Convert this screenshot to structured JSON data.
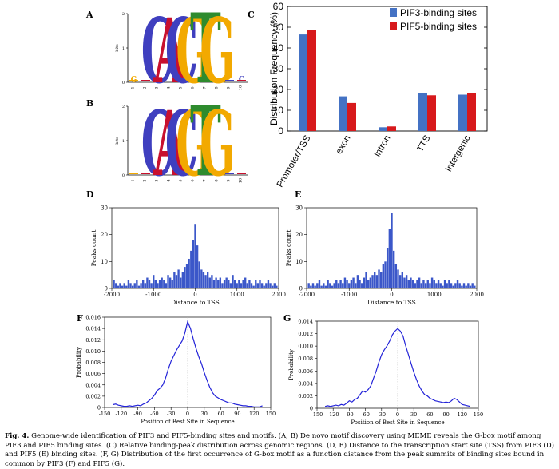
{
  "panel_labels": {
    "a": "A",
    "b": "B",
    "c": "C",
    "d": "D",
    "e": "E",
    "f": "F",
    "g": "G"
  },
  "logo_axis": {
    "ylabel": "bits",
    "yticks": [
      "0",
      "1",
      "2"
    ],
    "positions": [
      "1",
      "2",
      "3",
      "4",
      "5",
      "6",
      "7",
      "8",
      "9",
      "10"
    ]
  },
  "colors": {
    "series1": "#4472c4",
    "series2": "#d7191c",
    "hist": "#3b57c9",
    "curve": "#2323d8",
    "logo_c": "#3f3fbf",
    "logo_a": "#c8102e",
    "logo_g": "#f2a900",
    "logo_t": "#2e8b2e"
  },
  "motif_a": {
    "letters": [
      "G",
      "",
      "C",
      "A",
      "C",
      "G",
      "T",
      "G",
      "",
      ""
    ],
    "small_tail": "C"
  },
  "motif_b": {
    "letters": [
      "",
      "",
      "C",
      "A",
      "C",
      "G",
      "T",
      "G",
      "",
      ""
    ]
  },
  "chart_data": [
    {
      "id": "C",
      "type": "bar",
      "categories": [
        "Promoter/TSS",
        "exon",
        "intron",
        "TTS",
        "Intergenic"
      ],
      "series": [
        {
          "name": "PIF3-binding sites",
          "values": [
            46.5,
            16.7,
            1.8,
            18.2,
            17.5
          ]
        },
        {
          "name": "PIF5-binding sites",
          "values": [
            48.8,
            13.5,
            2.2,
            17.2,
            18.3
          ]
        }
      ],
      "ylabel": "Distribution Frequency (%)",
      "xlabel": "",
      "ylim": [
        0,
        60
      ],
      "yticks": [
        "0",
        "10",
        "20",
        "30",
        "40",
        "50",
        "60"
      ],
      "legend": "top-right"
    },
    {
      "id": "D",
      "type": "bar",
      "xlabel": "Distance to TSS",
      "ylabel": "Peaks count",
      "xlim": [
        -2000,
        2000
      ],
      "ylim": [
        0,
        30
      ],
      "xticks": [
        "-2000",
        "-1000",
        "0",
        "1000",
        "2000"
      ],
      "yticks": [
        "0",
        "10",
        "20",
        "30"
      ],
      "x": [
        -1950,
        -1900,
        -1850,
        -1800,
        -1750,
        -1700,
        -1650,
        -1600,
        -1550,
        -1500,
        -1450,
        -1400,
        -1350,
        -1300,
        -1250,
        -1200,
        -1150,
        -1100,
        -1050,
        -1000,
        -950,
        -900,
        -850,
        -800,
        -750,
        -700,
        -650,
        -600,
        -550,
        -500,
        -450,
        -400,
        -350,
        -300,
        -250,
        -200,
        -150,
        -100,
        -50,
        0,
        50,
        100,
        150,
        200,
        250,
        300,
        350,
        400,
        450,
        500,
        550,
        600,
        650,
        700,
        750,
        800,
        850,
        900,
        950,
        1000,
        1050,
        1100,
        1150,
        1200,
        1250,
        1300,
        1350,
        1400,
        1450,
        1500,
        1550,
        1600,
        1650,
        1700,
        1750,
        1800,
        1850,
        1900,
        1950
      ],
      "values": [
        3,
        2,
        1,
        2,
        1,
        2,
        1,
        3,
        2,
        1,
        2,
        3,
        1,
        2,
        3,
        2,
        4,
        3,
        2,
        5,
        3,
        2,
        3,
        4,
        3,
        2,
        5,
        4,
        3,
        6,
        5,
        7,
        4,
        6,
        8,
        9,
        11,
        14,
        18,
        24,
        16,
        10,
        7,
        6,
        5,
        6,
        4,
        5,
        3,
        4,
        3,
        4,
        2,
        3,
        4,
        3,
        2,
        5,
        3,
        2,
        3,
        2,
        3,
        4,
        2,
        3,
        2,
        1,
        3,
        2,
        3,
        2,
        1,
        2,
        3,
        2,
        1,
        2,
        1
      ]
    },
    {
      "id": "E",
      "type": "bar",
      "xlabel": "Distance to TSS",
      "ylabel": "Peaks count",
      "xlim": [
        -2000,
        2000
      ],
      "ylim": [
        0,
        30
      ],
      "xticks": [
        "-2000",
        "-1000",
        "0",
        "1000",
        "2000"
      ],
      "yticks": [
        "0",
        "10",
        "20",
        "30"
      ],
      "x": [
        -1950,
        -1900,
        -1850,
        -1800,
        -1750,
        -1700,
        -1650,
        -1600,
        -1550,
        -1500,
        -1450,
        -1400,
        -1350,
        -1300,
        -1250,
        -1200,
        -1150,
        -1100,
        -1050,
        -1000,
        -950,
        -900,
        -850,
        -800,
        -750,
        -700,
        -650,
        -600,
        -550,
        -500,
        -450,
        -400,
        -350,
        -300,
        -250,
        -200,
        -150,
        -100,
        -50,
        0,
        50,
        100,
        150,
        200,
        250,
        300,
        350,
        400,
        450,
        500,
        550,
        600,
        650,
        700,
        750,
        800,
        850,
        900,
        950,
        1000,
        1050,
        1100,
        1150,
        1200,
        1250,
        1300,
        1350,
        1400,
        1450,
        1500,
        1550,
        1600,
        1650,
        1700,
        1750,
        1800,
        1850,
        1900,
        1950
      ],
      "values": [
        2,
        1,
        2,
        1,
        2,
        3,
        1,
        2,
        1,
        3,
        2,
        1,
        2,
        3,
        2,
        3,
        2,
        4,
        3,
        2,
        3,
        4,
        2,
        5,
        3,
        2,
        4,
        6,
        3,
        4,
        5,
        6,
        5,
        7,
        6,
        9,
        10,
        15,
        22,
        28,
        14,
        9,
        7,
        5,
        6,
        4,
        5,
        3,
        4,
        3,
        2,
        3,
        4,
        2,
        3,
        2,
        3,
        2,
        4,
        3,
        2,
        3,
        2,
        1,
        3,
        2,
        3,
        2,
        1,
        2,
        3,
        2,
        1,
        2,
        1,
        2,
        1,
        2,
        1
      ]
    },
    {
      "id": "F",
      "type": "line",
      "xlabel": "Position of Best Site in Sequence",
      "ylabel": "Probability",
      "xlim": [
        -150,
        150
      ],
      "ylim": [
        0,
        0.016
      ],
      "xticks": [
        "-150",
        "-120",
        "-90",
        "-60",
        "-30",
        "0",
        "30",
        "60",
        "90",
        "120",
        "150"
      ],
      "yticks": [
        "0",
        "0.002",
        "0.004",
        "0.006",
        "0.008",
        "0.010",
        "0.012",
        "0.014",
        "0.016"
      ],
      "x": [
        -135,
        -130,
        -125,
        -120,
        -115,
        -110,
        -105,
        -100,
        -95,
        -90,
        -85,
        -80,
        -75,
        -70,
        -65,
        -60,
        -55,
        -50,
        -45,
        -40,
        -35,
        -30,
        -25,
        -20,
        -15,
        -10,
        -5,
        0,
        5,
        10,
        15,
        20,
        25,
        30,
        35,
        40,
        45,
        50,
        55,
        60,
        65,
        70,
        75,
        80,
        85,
        90,
        95,
        100,
        105,
        110,
        115,
        120,
        125,
        130,
        135
      ],
      "values": [
        0.0005,
        0.0006,
        0.0004,
        0.0003,
        0.0002,
        0.0002,
        0.0003,
        0.0002,
        0.0003,
        0.0004,
        0.0003,
        0.0006,
        0.0008,
        0.0012,
        0.0016,
        0.0022,
        0.003,
        0.0034,
        0.004,
        0.0052,
        0.0068,
        0.0082,
        0.0092,
        0.0102,
        0.011,
        0.0118,
        0.0132,
        0.0152,
        0.014,
        0.0122,
        0.0105,
        0.009,
        0.0078,
        0.0062,
        0.0048,
        0.0036,
        0.0026,
        0.002,
        0.0017,
        0.0014,
        0.0012,
        0.001,
        0.0008,
        0.0008,
        0.0006,
        0.0005,
        0.0004,
        0.0003,
        0.0003,
        0.0002,
        0.0002,
        0.0001,
        0.0001,
        0.0001,
        0.0003
      ]
    },
    {
      "id": "G",
      "type": "line",
      "xlabel": "Position of Best Site in Sequence",
      "ylabel": "Probability",
      "xlim": [
        -150,
        150
      ],
      "ylim": [
        0,
        0.014
      ],
      "xticks": [
        "-150",
        "-120",
        "-90",
        "-60",
        "-30",
        "0",
        "30",
        "60",
        "90",
        "120",
        "150"
      ],
      "yticks": [
        "0",
        "0.002",
        "0.004",
        "0.006",
        "0.008",
        "0.010",
        "0.012",
        "0.014"
      ],
      "x": [
        -135,
        -130,
        -125,
        -120,
        -115,
        -110,
        -105,
        -100,
        -95,
        -90,
        -85,
        -80,
        -75,
        -70,
        -65,
        -60,
        -55,
        -50,
        -45,
        -40,
        -35,
        -30,
        -25,
        -20,
        -15,
        -10,
        -5,
        0,
        5,
        10,
        15,
        20,
        25,
        30,
        35,
        40,
        45,
        50,
        55,
        60,
        65,
        70,
        75,
        80,
        85,
        90,
        95,
        100,
        105,
        110,
        115,
        120,
        125,
        130,
        135
      ],
      "values": [
        0.0003,
        0.0004,
        0.0003,
        0.0004,
        0.0005,
        0.0004,
        0.0006,
        0.0005,
        0.0008,
        0.0012,
        0.001,
        0.0014,
        0.0016,
        0.0022,
        0.0028,
        0.0026,
        0.003,
        0.0036,
        0.0048,
        0.006,
        0.0074,
        0.0086,
        0.0094,
        0.01,
        0.0108,
        0.0118,
        0.0124,
        0.0128,
        0.0124,
        0.0116,
        0.01,
        0.0086,
        0.0072,
        0.0058,
        0.0046,
        0.0036,
        0.0028,
        0.0022,
        0.002,
        0.0016,
        0.0014,
        0.0012,
        0.0011,
        0.001,
        0.0009,
        0.001,
        0.0009,
        0.0012,
        0.0016,
        0.0014,
        0.001,
        0.0006,
        0.0005,
        0.0004,
        0.0003
      ]
    }
  ],
  "caption": {
    "label": "Fig. 4.",
    "text": " Genome-wide identification of PIF3 and PIF5-binding sites and motifs. (A, B) De novo motif discovery using MEME reveals the G-box motif among PIF3 and PIF5 binding sites. (C) Relative binding-peak distribution across genomic regions. (D, E) Distance to the transcription start site (TSS) from PIF3 (D) and PIF5 (E) binding sites. (F, G) Distribution of the first occurrence of G-box motif as a function distance from the peak summits of binding sites bound in common by PIF3 (F) and PIF5 (G)."
  }
}
